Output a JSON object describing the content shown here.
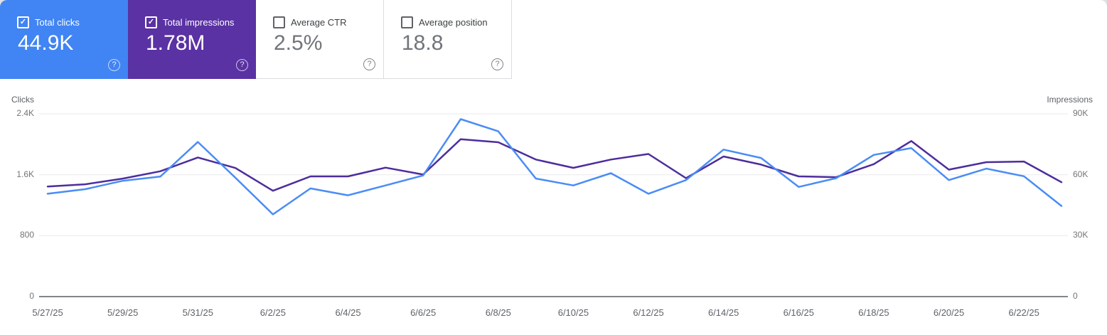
{
  "cards": [
    {
      "label": "Total clicks",
      "value": "44.9K",
      "checked": true,
      "accent": "#4184f3"
    },
    {
      "label": "Total impressions",
      "value": "1.78M",
      "checked": true,
      "accent": "#5a32a3"
    },
    {
      "label": "Average CTR",
      "value": "2.5%",
      "checked": false,
      "accent": null
    },
    {
      "label": "Average position",
      "value": "18.8",
      "checked": false,
      "accent": null
    }
  ],
  "icons": {
    "check_glyph": "✓",
    "help_glyph": "?"
  },
  "chart_data": {
    "type": "line",
    "x": [
      "5/27/25",
      "5/28/25",
      "5/29/25",
      "5/30/25",
      "5/31/25",
      "6/1/25",
      "6/2/25",
      "6/3/25",
      "6/4/25",
      "6/5/25",
      "6/6/25",
      "6/7/25",
      "6/8/25",
      "6/9/25",
      "6/10/25",
      "6/11/25",
      "6/12/25",
      "6/13/25",
      "6/14/25",
      "6/15/25",
      "6/16/25",
      "6/17/25",
      "6/18/25",
      "6/19/25",
      "6/20/25",
      "6/21/25",
      "6/22/25",
      "6/23/25"
    ],
    "x_tick_labels": [
      "5/27/25",
      "5/29/25",
      "5/31/25",
      "6/2/25",
      "6/4/25",
      "6/6/25",
      "6/8/25",
      "6/10/25",
      "6/12/25",
      "6/14/25",
      "6/16/25",
      "6/18/25",
      "6/20/25",
      "6/22/25"
    ],
    "x_tick_step": 2,
    "series": [
      {
        "name": "Clicks",
        "axis": "left",
        "color": "#4a8cf6",
        "values": [
          1350,
          1410,
          1520,
          1575,
          2030,
          1560,
          1080,
          1420,
          1330,
          1460,
          1590,
          2330,
          2170,
          1550,
          1460,
          1620,
          1350,
          1530,
          1930,
          1820,
          1440,
          1555,
          1860,
          1950,
          1530,
          1680,
          1580,
          1190
        ]
      },
      {
        "name": "Impressions",
        "axis": "right",
        "color": "#4d2d9c",
        "values": [
          54200,
          55300,
          58100,
          61700,
          68500,
          63300,
          52100,
          59200,
          59200,
          63500,
          60100,
          77500,
          76000,
          67500,
          63400,
          67500,
          70200,
          58300,
          69000,
          65000,
          59200,
          58800,
          65200,
          76600,
          62500,
          66200,
          66500,
          56300
        ]
      }
    ],
    "left_axis": {
      "title": "Clicks",
      "max": 2400,
      "tick_labels": [
        "0",
        "800",
        "1.6K",
        "2.4K"
      ],
      "tick_values": [
        0,
        800,
        1600,
        2400
      ]
    },
    "right_axis": {
      "title": "Impressions",
      "max": 90000,
      "tick_labels": [
        "0",
        "30K",
        "60K",
        "90K"
      ],
      "tick_values": [
        0,
        30000,
        60000,
        90000
      ]
    },
    "grid": "horizontal",
    "gridline_color": "#e8eaed",
    "baseline_color": "#80868b",
    "legend_position": "none"
  }
}
